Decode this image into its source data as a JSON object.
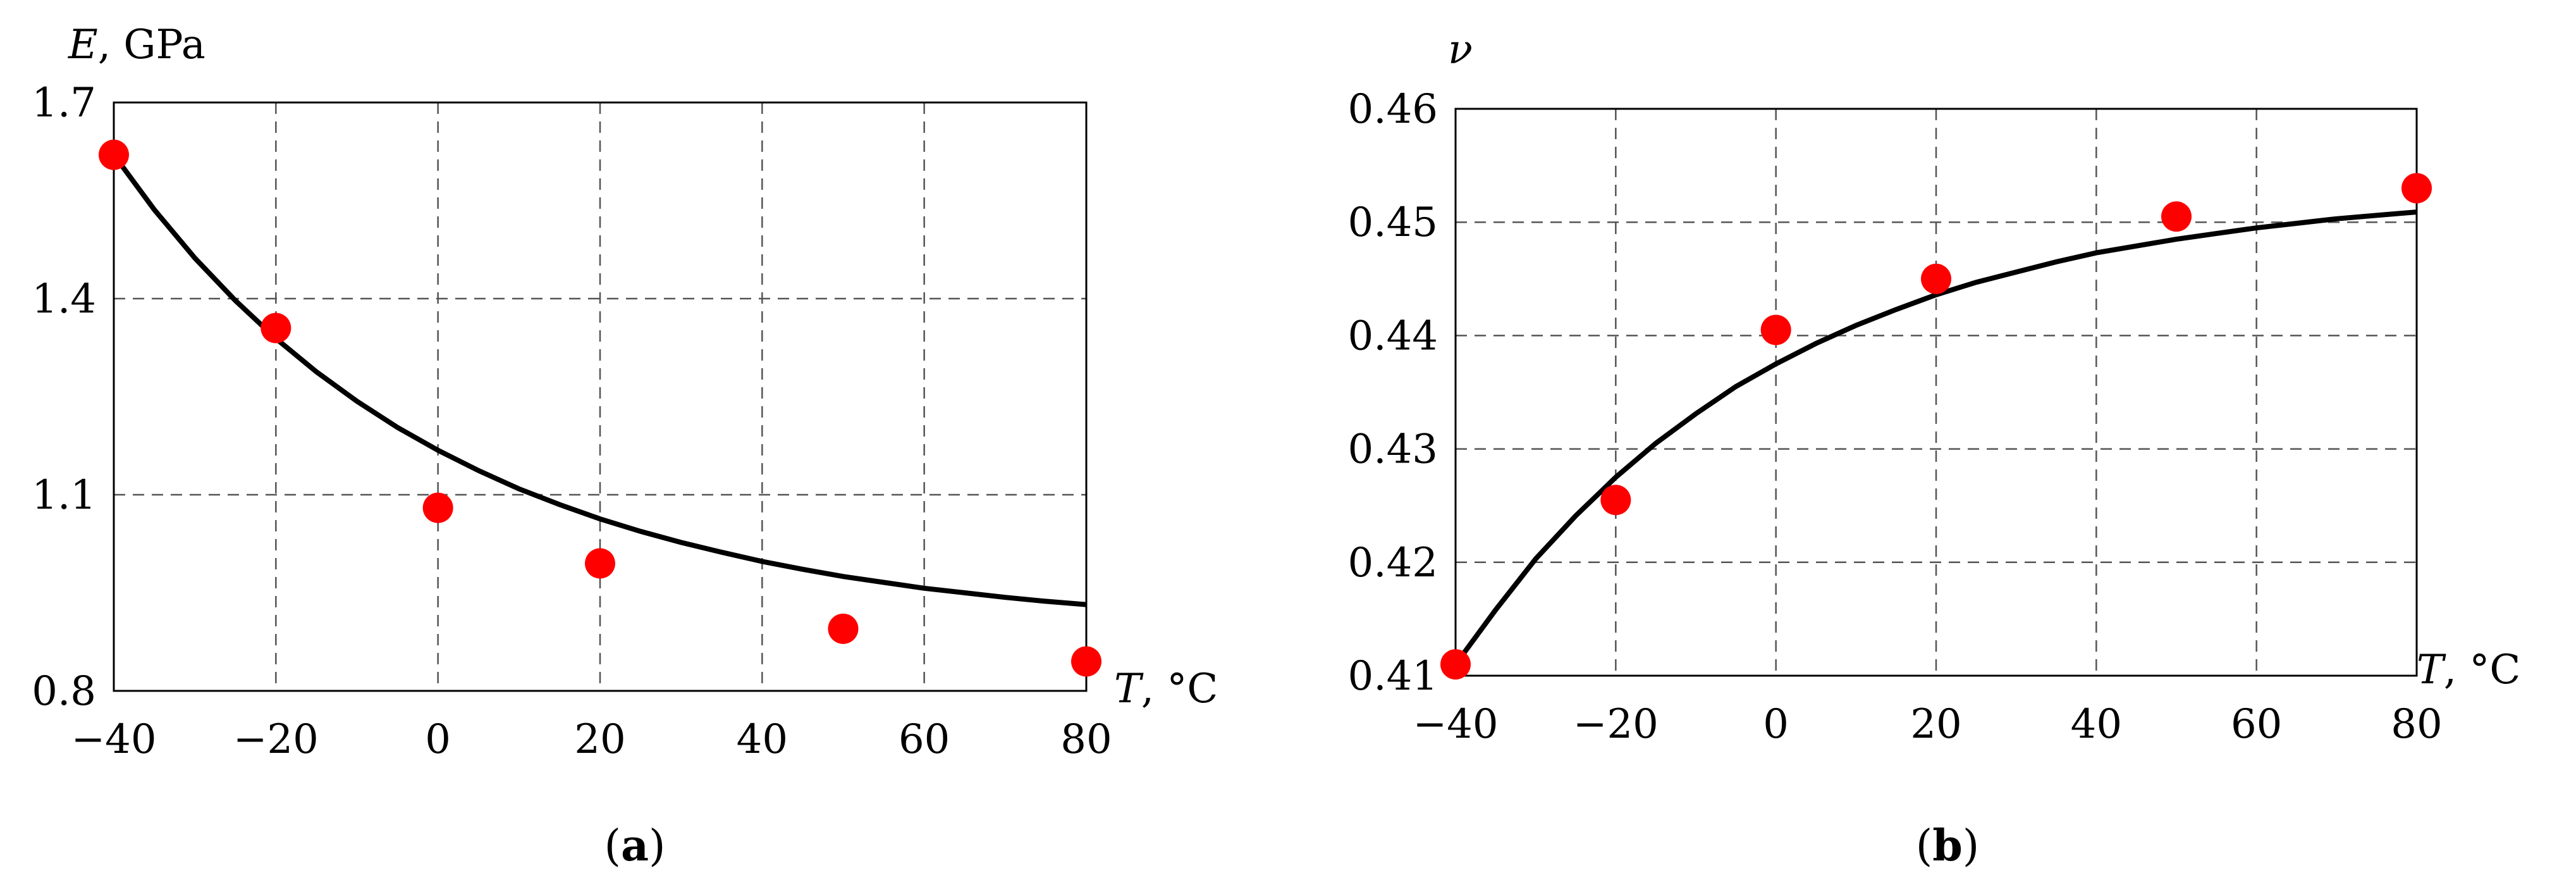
{
  "chart_data": [
    {
      "type": "scatter",
      "panel_label": "(a)",
      "panel_letter": "a",
      "ylabel_symbol": "E",
      "ylabel_unit": ", GPa",
      "xlabel_symbol": "T",
      "xlabel_unit": ", °C",
      "xlim": [
        -40,
        80
      ],
      "ylim": [
        0.8,
        1.7
      ],
      "xticks": [
        -40,
        -20,
        0,
        20,
        40,
        60,
        80
      ],
      "xtick_labels": [
        "−40",
        "−20",
        "0",
        "20",
        "40",
        "60",
        "80"
      ],
      "yticks": [
        0.8,
        1.1,
        1.4,
        1.7
      ],
      "ytick_labels": [
        "0.8",
        "1.1",
        "1.4",
        "1.7"
      ],
      "grid": true,
      "series": [
        {
          "kind": "points",
          "x": [
            -40,
            -20,
            0,
            20,
            50,
            80
          ],
          "y": [
            1.62,
            1.355,
            1.08,
            0.995,
            0.895,
            0.845
          ],
          "color": "#ff0000"
        },
        {
          "kind": "curve",
          "x": [
            -40,
            -35,
            -30,
            -25,
            -20,
            -15,
            -10,
            -5,
            0,
            5,
            10,
            15,
            20,
            25,
            30,
            35,
            40,
            45,
            50,
            55,
            60,
            65,
            70,
            75,
            80
          ],
          "y": [
            1.62,
            1.536,
            1.462,
            1.397,
            1.339,
            1.288,
            1.243,
            1.203,
            1.168,
            1.137,
            1.109,
            1.085,
            1.063,
            1.044,
            1.027,
            1.012,
            0.998,
            0.986,
            0.975,
            0.966,
            0.957,
            0.95,
            0.943,
            0.937,
            0.932
          ],
          "color": "#000000"
        }
      ]
    },
    {
      "type": "scatter",
      "panel_label": "(b)",
      "panel_letter": "b",
      "ylabel_symbol": "ν",
      "xlabel_symbol": "T",
      "xlabel_unit": ", °C",
      "xlim": [
        -40,
        80
      ],
      "ylim": [
        0.41,
        0.46
      ],
      "xticks": [
        -40,
        -20,
        0,
        20,
        40,
        60,
        80
      ],
      "xtick_labels": [
        "−40",
        "−20",
        "0",
        "20",
        "40",
        "60",
        "80"
      ],
      "yticks": [
        0.41,
        0.42,
        0.43,
        0.44,
        0.45,
        0.46
      ],
      "ytick_labels": [
        "0.41",
        "0.42",
        "0.43",
        "0.44",
        "0.45",
        "0.46"
      ],
      "grid": true,
      "series": [
        {
          "kind": "points",
          "x": [
            -40,
            -20,
            0,
            20,
            50,
            80
          ],
          "y": [
            0.411,
            0.4255,
            0.4405,
            0.445,
            0.4505,
            0.453
          ],
          "color": "#ff0000"
        },
        {
          "kind": "curve",
          "x": [
            -40,
            -35,
            -30,
            -25,
            -20,
            -15,
            -10,
            -5,
            0,
            5,
            10,
            15,
            20,
            25,
            30,
            35,
            40,
            45,
            50,
            55,
            60,
            65,
            70,
            75,
            80
          ],
          "y": [
            0.411,
            0.4158,
            0.4203,
            0.4241,
            0.4275,
            0.4305,
            0.4331,
            0.4355,
            0.4375,
            0.4393,
            0.4409,
            0.4423,
            0.4436,
            0.4447,
            0.4456,
            0.4465,
            0.4473,
            0.4479,
            0.4485,
            0.449,
            0.4495,
            0.4499,
            0.4503,
            0.4506,
            0.4509
          ],
          "color": "#000000"
        }
      ]
    }
  ]
}
